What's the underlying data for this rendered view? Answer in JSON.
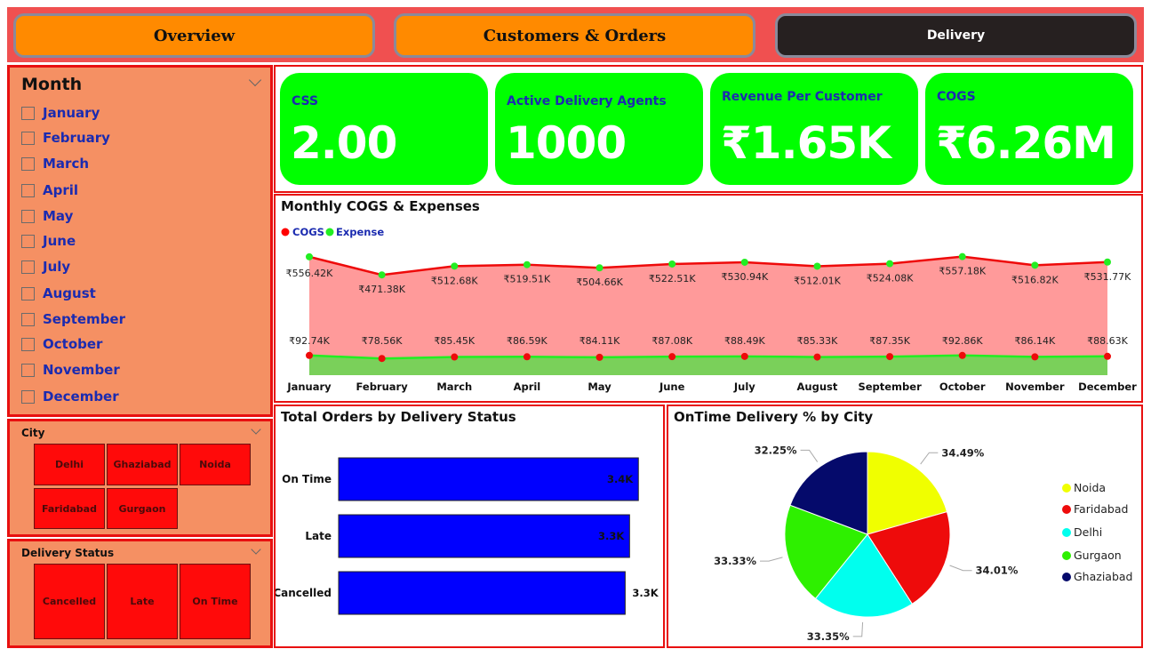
{
  "nav": {
    "overview": "Overview",
    "customers_orders": "Customers & Orders",
    "delivery": "Delivery"
  },
  "month_slicer": {
    "title": "Month",
    "items": [
      "January",
      "February",
      "March",
      "April",
      "May",
      "June",
      "July",
      "August",
      "September",
      "October",
      "November",
      "December"
    ]
  },
  "city_slicer": {
    "title": "City",
    "items": [
      "Delhi",
      "Ghaziabad",
      "Noida",
      "Faridabad",
      "Gurgaon"
    ]
  },
  "status_slicer": {
    "title": "Delivery Status",
    "items": [
      "Cancelled",
      "Late",
      "On Time"
    ]
  },
  "kpis": [
    {
      "label": "CSS",
      "value": "2.00"
    },
    {
      "label": "Active Delivery Agents",
      "value": "1000"
    },
    {
      "label": "Revenue Per Customer",
      "value": "₹1.65K"
    },
    {
      "label": "COGS",
      "value": "₹6.26M"
    }
  ],
  "colors": {
    "accent_red": "#e81010",
    "kpi_green": "#00ff00",
    "panel_orange": "#f59063",
    "nav_orange": "#ff8a00",
    "bar_blue": "#0000ff"
  },
  "chart_data": [
    {
      "type": "area",
      "title": "Monthly COGS & Expenses",
      "categories": [
        "January",
        "February",
        "March",
        "April",
        "May",
        "June",
        "July",
        "August",
        "September",
        "October",
        "November",
        "December"
      ],
      "series": [
        {
          "name": "COGS",
          "color": "#ff0000",
          "values": [
            556.42,
            471.38,
            512.68,
            519.51,
            504.66,
            522.51,
            530.94,
            512.01,
            524.08,
            557.18,
            516.82,
            531.77
          ],
          "labels": [
            "₹556.42K",
            "₹471.38K",
            "₹512.68K",
            "₹519.51K",
            "₹504.66K",
            "₹522.51K",
            "₹530.94K",
            "₹512.01K",
            "₹524.08K",
            "₹557.18K",
            "₹516.82K",
            "₹531.77K"
          ]
        },
        {
          "name": "Expense",
          "color": "#22ee22",
          "values": [
            92.74,
            78.56,
            85.45,
            86.59,
            84.11,
            87.08,
            88.49,
            85.33,
            87.35,
            92.86,
            86.14,
            88.63
          ],
          "labels": [
            "₹92.74K",
            "₹78.56K",
            "₹85.45K",
            "₹86.59K",
            "₹84.11K",
            "₹87.08K",
            "₹88.49K",
            "₹85.33K",
            "₹87.35K",
            "₹92.86K",
            "₹86.14K",
            "₹88.63K"
          ]
        }
      ],
      "legend_position": "top-left"
    },
    {
      "type": "bar",
      "title": "Total Orders by Delivery Status",
      "orientation": "horizontal",
      "categories": [
        "On Time",
        "Late",
        "Cancelled"
      ],
      "values": [
        3400,
        3300,
        3250
      ],
      "labels": [
        "3.4K",
        "3.3K",
        "3.3K"
      ],
      "xlim": [
        0,
        3700
      ],
      "color": "#0000ff"
    },
    {
      "type": "pie",
      "title": "OnTime Delivery % by City",
      "categories": [
        "Noida",
        "Faridabad",
        "Delhi",
        "Gurgaon",
        "Ghaziabad"
      ],
      "values": [
        34.49,
        34.01,
        33.35,
        33.33,
        32.25
      ],
      "labels": [
        "34.49%",
        "34.01%",
        "33.35%",
        "33.33%",
        "32.25%"
      ],
      "colors": [
        "#f0ff00",
        "#ee0b0b",
        "#00ffee",
        "#2ef000",
        "#050a6b"
      ],
      "legend_position": "right"
    }
  ]
}
